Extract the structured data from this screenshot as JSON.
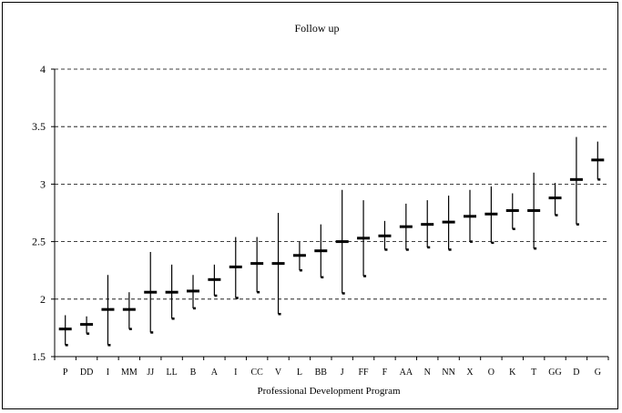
{
  "chart_data": {
    "type": "high-low-mean",
    "title": "Follow up",
    "xlabel": "Professional Development Program",
    "ylabel": "",
    "ylim": [
      1.5,
      4
    ],
    "yticks": [
      "1.5",
      "2",
      "2.5",
      "3",
      "3.5",
      "4"
    ],
    "ytick_values": [
      1.5,
      2,
      2.5,
      3,
      3.5,
      4
    ],
    "grid": "horizontal dashed",
    "legend": "none",
    "categories": [
      "P",
      "DD",
      "I",
      "MM",
      "JJ",
      "LL",
      "B",
      "A",
      "I",
      "CC",
      "V",
      "L",
      "BB",
      "J",
      "FF",
      "F",
      "AA",
      "N",
      "NN",
      "X",
      "O",
      "K",
      "T",
      "GG",
      "D",
      "G"
    ],
    "mean": [
      1.74,
      1.78,
      1.91,
      1.91,
      2.06,
      2.06,
      2.07,
      2.17,
      2.28,
      2.31,
      2.31,
      2.38,
      2.42,
      2.5,
      2.53,
      2.55,
      2.63,
      2.65,
      2.67,
      2.72,
      2.74,
      2.77,
      2.77,
      2.88,
      3.04,
      3.21
    ],
    "high": [
      1.86,
      1.85,
      2.21,
      2.06,
      2.41,
      2.3,
      2.21,
      2.3,
      2.54,
      2.54,
      2.75,
      2.5,
      2.65,
      2.95,
      2.86,
      2.68,
      2.83,
      2.86,
      2.9,
      2.95,
      2.98,
      2.92,
      3.1,
      3.01,
      3.41,
      3.37
    ],
    "low": [
      1.6,
      1.7,
      1.6,
      1.74,
      1.71,
      1.83,
      1.92,
      2.03,
      2.01,
      2.06,
      1.87,
      2.25,
      2.19,
      2.05,
      2.2,
      2.43,
      2.43,
      2.45,
      2.43,
      2.5,
      2.49,
      2.61,
      2.44,
      2.73,
      2.65,
      3.04
    ],
    "colors": {
      "line": "#000000",
      "grid": "#000000",
      "background": "#ffffff"
    }
  }
}
